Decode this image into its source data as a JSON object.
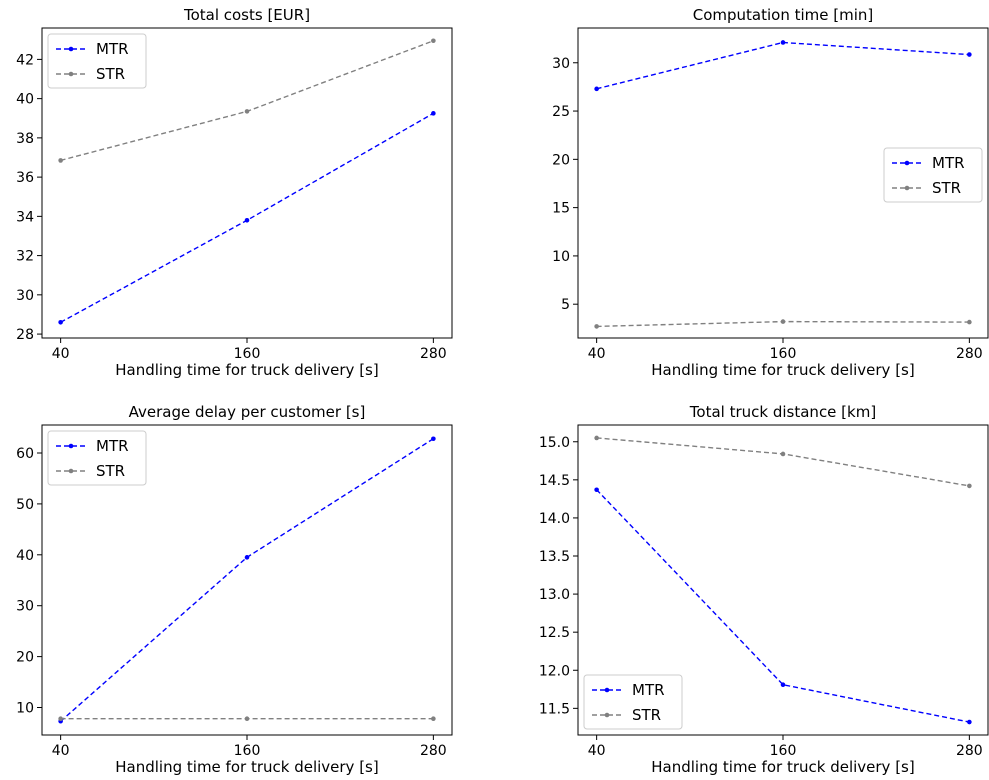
{
  "chart_data": [
    {
      "type": "line",
      "title": "Total costs [EUR]",
      "xlabel": "Handling time for truck delivery [s]",
      "ylabel": "",
      "x": [
        40,
        160,
        280
      ],
      "xticks": [
        "40",
        "160",
        "280"
      ],
      "xlim": [
        28,
        292
      ],
      "ylim": [
        27.8,
        43.6
      ],
      "yticks": [
        28,
        30,
        32,
        34,
        36,
        38,
        40,
        42
      ],
      "legend": "top-left",
      "series": [
        {
          "name": "MTR",
          "color": "#0000ff",
          "values": [
            28.6,
            33.8,
            39.25
          ]
        },
        {
          "name": "STR",
          "color": "#808080",
          "values": [
            36.85,
            39.35,
            42.95
          ]
        }
      ]
    },
    {
      "type": "line",
      "title": "Computation time [min]",
      "xlabel": "Handling time for truck delivery [s]",
      "ylabel": "",
      "x": [
        40,
        160,
        280
      ],
      "xticks": [
        "40",
        "160",
        "280"
      ],
      "xlim": [
        28,
        292
      ],
      "ylim": [
        1.5,
        33.6
      ],
      "yticks": [
        5,
        10,
        15,
        20,
        25,
        30
      ],
      "legend": "center-right",
      "series": [
        {
          "name": "MTR",
          "color": "#0000ff",
          "values": [
            27.3,
            32.1,
            30.85
          ]
        },
        {
          "name": "STR",
          "color": "#808080",
          "values": [
            2.7,
            3.2,
            3.15
          ]
        }
      ]
    },
    {
      "type": "line",
      "title": "Average delay per customer [s]",
      "xlabel": "Handling time for truck delivery [s]",
      "ylabel": "",
      "x": [
        40,
        160,
        280
      ],
      "xticks": [
        "40",
        "160",
        "280"
      ],
      "xlim": [
        28,
        292
      ],
      "ylim": [
        4.6,
        65.5
      ],
      "yticks": [
        10,
        20,
        30,
        40,
        50,
        60
      ],
      "legend": "top-left",
      "series": [
        {
          "name": "MTR",
          "color": "#0000ff",
          "values": [
            7.3,
            39.5,
            62.8
          ]
        },
        {
          "name": "STR",
          "color": "#808080",
          "values": [
            7.8,
            7.8,
            7.8
          ]
        }
      ]
    },
    {
      "type": "line",
      "title": "Total truck distance [km]",
      "xlabel": "Handling time for truck delivery [s]",
      "ylabel": "",
      "x": [
        40,
        160,
        280
      ],
      "xticks": [
        "40",
        "160",
        "280"
      ],
      "xlim": [
        28,
        292
      ],
      "ylim": [
        11.15,
        15.22
      ],
      "yticks": [
        11.5,
        12.0,
        12.5,
        13.0,
        13.5,
        14.0,
        14.5,
        15.0
      ],
      "ytick_decimals": 1,
      "legend": "bottom-left",
      "series": [
        {
          "name": "MTR",
          "color": "#0000ff",
          "values": [
            14.37,
            11.81,
            11.32
          ]
        },
        {
          "name": "STR",
          "color": "#808080",
          "values": [
            15.05,
            14.84,
            14.42
          ]
        }
      ]
    }
  ]
}
